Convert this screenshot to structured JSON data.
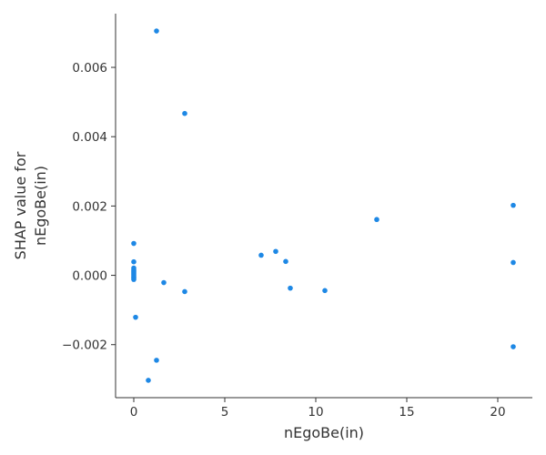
{
  "chart_data": {
    "type": "scatter",
    "title": "",
    "xlabel": "nEgoBe(in)",
    "ylabel_lines": [
      "SHAP value for",
      "nEgoBe(in)"
    ],
    "xlim": [
      -1,
      21.9
    ],
    "ylim": [
      -0.00353,
      0.00755
    ],
    "xticks": [
      0,
      5,
      10,
      15,
      20
    ],
    "xtick_labels": [
      "0",
      "5",
      "10",
      "15",
      "20"
    ],
    "yticks": [
      -0.002,
      0,
      0.002,
      0.004,
      0.006
    ],
    "ytick_labels": [
      "−0.002",
      "0.000",
      "0.002",
      "0.004",
      "0.006"
    ],
    "grid": false,
    "marker_color": "#1e88e5",
    "points": [
      {
        "x": 1.25,
        "y": 0.00705
      },
      {
        "x": 2.8,
        "y": 0.00467
      },
      {
        "x": 0.0,
        "y": 0.00092
      },
      {
        "x": 0.0,
        "y": 0.00039
      },
      {
        "x": 0.0,
        "y": 0.00021
      },
      {
        "x": 0.0,
        "y": 0.00016
      },
      {
        "x": 0.0,
        "y": 0.00012
      },
      {
        "x": 0.0,
        "y": 8e-05
      },
      {
        "x": 0.0,
        "y": 4e-05
      },
      {
        "x": 0.0,
        "y": 0.0
      },
      {
        "x": 0.0,
        "y": -4e-05
      },
      {
        "x": 0.0,
        "y": -8e-05
      },
      {
        "x": 0.0,
        "y": -0.00012
      },
      {
        "x": 0.1,
        "y": -0.00121
      },
      {
        "x": 1.65,
        "y": -0.00021
      },
      {
        "x": 2.8,
        "y": -0.00047
      },
      {
        "x": 1.25,
        "y": -0.00245
      },
      {
        "x": 0.8,
        "y": -0.00303
      },
      {
        "x": 7.0,
        "y": 0.00058
      },
      {
        "x": 7.8,
        "y": 0.00069
      },
      {
        "x": 8.35,
        "y": 0.0004
      },
      {
        "x": 8.6,
        "y": -0.00037
      },
      {
        "x": 10.5,
        "y": -0.00044
      },
      {
        "x": 13.35,
        "y": 0.00161
      },
      {
        "x": 20.85,
        "y": 0.00202
      },
      {
        "x": 20.85,
        "y": 0.00037
      },
      {
        "x": 20.85,
        "y": -0.00206
      }
    ]
  }
}
